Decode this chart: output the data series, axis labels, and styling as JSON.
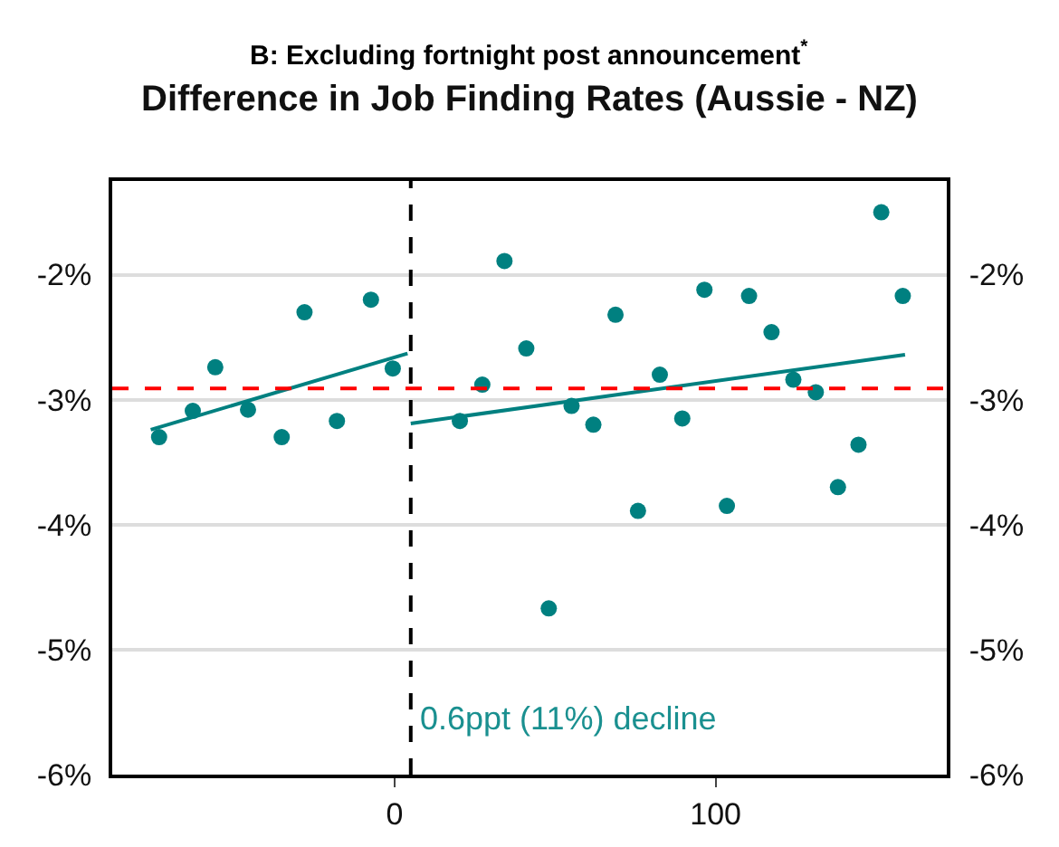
{
  "chart_data": {
    "type": "scatter",
    "subtitle": "B: Excluding fortnight post announcement$^{*}$",
    "title": "Difference in Job Finding Rates (Aussie - NZ)",
    "series": [
      {
        "color": "#008080",
        "marker": "circle",
        "x": [
          -73.4,
          -62.9,
          -55.9,
          -45.7,
          -35.2,
          -28.1,
          -18,
          -7.4,
          -0.6,
          20.3,
          27.3,
          34.2,
          41,
          48,
          55.1,
          61.9,
          68.8,
          75.8,
          82.6,
          89.6,
          96.5,
          103.5,
          110.4,
          117.4,
          124.2,
          131.2,
          138.1,
          144.5,
          151.6,
          158.3
        ],
        "values": [
          -3.3,
          -3.09,
          -2.74,
          -3.08,
          -3.3,
          -2.3,
          -3.17,
          -2.2,
          -2.75,
          -3.17,
          -2.88,
          -1.89,
          -2.59,
          -4.67,
          -3.05,
          -3.2,
          -2.32,
          -3.89,
          -2.8,
          -3.15,
          -2.12,
          -3.85,
          -2.17,
          -2.46,
          -2.84,
          -2.94,
          -3.7,
          -3.36,
          -1.5,
          -2.17
        ]
      },
      {
        "type": "line",
        "color": "#008080",
        "x": [
          -76,
          4
        ],
        "values": [
          -3.24,
          -2.63
        ]
      },
      {
        "type": "line",
        "color": "#008080",
        "x": [
          5,
          159
        ],
        "values": [
          -3.19,
          -2.64
        ]
      }
    ],
    "xlim": [
      -88,
      172
    ],
    "xticks": [
      0,
      100
    ],
    "ylim": [
      -6,
      -1.25
    ],
    "yticks": [
      {
        "value": -6,
        "label": "-6%"
      },
      {
        "value": -5,
        "label": "-5%"
      },
      {
        "value": -4,
        "label": "-4%"
      },
      {
        "value": -3,
        "label": "-3%"
      },
      {
        "value": -2,
        "label": "-2%"
      }
    ],
    "y2lim": [
      -6,
      -1.25
    ],
    "y2ticks": [
      {
        "value": -6,
        "label": "-6%"
      },
      {
        "value": -5,
        "label": "-5%"
      },
      {
        "value": -4,
        "label": "-4%"
      },
      {
        "value": -3,
        "label": "-3%"
      },
      {
        "value": -2,
        "label": "-2%"
      }
    ],
    "ref_lines": [
      {
        "axis": "x",
        "value": 5,
        "color": "#000000",
        "line_style": "dashed"
      },
      {
        "axis": "y",
        "value": -2.91,
        "color": "#ff0000",
        "line_style": "dashed"
      }
    ],
    "annotations": [
      {
        "text": "0.6ppt (11%) decline",
        "x": 7,
        "y": -5.55
      }
    ],
    "grid": "y"
  }
}
